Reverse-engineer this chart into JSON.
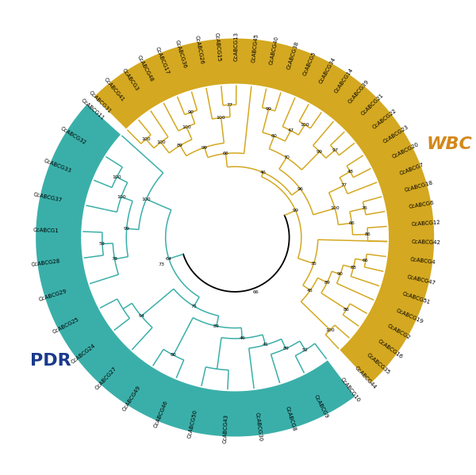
{
  "wbc_color": "#D4A820",
  "pdr_color": "#3AAFA9",
  "wbc_label_color": "#D4881A",
  "pdr_label_color": "#1B3A8C",
  "bg_color": "#FFFFFF",
  "figsize": [
    6.0,
    5.99
  ],
  "dpi": 100,
  "wbc_ordered": [
    "CcABCG31",
    "CcABCG41",
    "CcABCG3",
    "CcABCG48",
    "CcABCG17",
    "CcABCG36",
    "CcABCG26",
    "CcABCG15",
    "CcABCG13",
    "CcABCG45",
    "CcABCG40",
    "CcABCG38",
    "CcABCG5",
    "CcABCG34",
    "CcABCG14",
    "CcABCG39",
    "CcABCG21",
    "CcABCG22",
    "CcABCG23",
    "CcABCG20",
    "CcABCG7",
    "CcABCG18",
    "CcABCG6",
    "CcABCG12",
    "CcABCG42",
    "CcABCG4",
    "CcABCG47",
    "CcABCG51",
    "CcABCG19",
    "CcABCG2",
    "CcABCG16",
    "CcABCG35",
    "CcABCG44"
  ],
  "pdr_ordered": [
    "CcABCG10",
    "CcABCG9",
    "CcABCG8",
    "CcABCG30",
    "CcABCG43",
    "CcABCG50",
    "CcABCG46",
    "CcABCG49",
    "CcABCG27",
    "CcABCG24",
    "CcABCG25",
    "CcABCG29",
    "CcABCG28",
    "CcABCG1",
    "CcABCG37",
    "CcABCG33",
    "CcABCG32",
    "CcABCG11"
  ],
  "r_band_inner": 1.02,
  "r_band_outer": 1.32,
  "r_label": 1.17,
  "r_leaf": 1.01,
  "label_fontsize": 5.0,
  "bs_fontsize": 4.5,
  "lw": 1.1
}
